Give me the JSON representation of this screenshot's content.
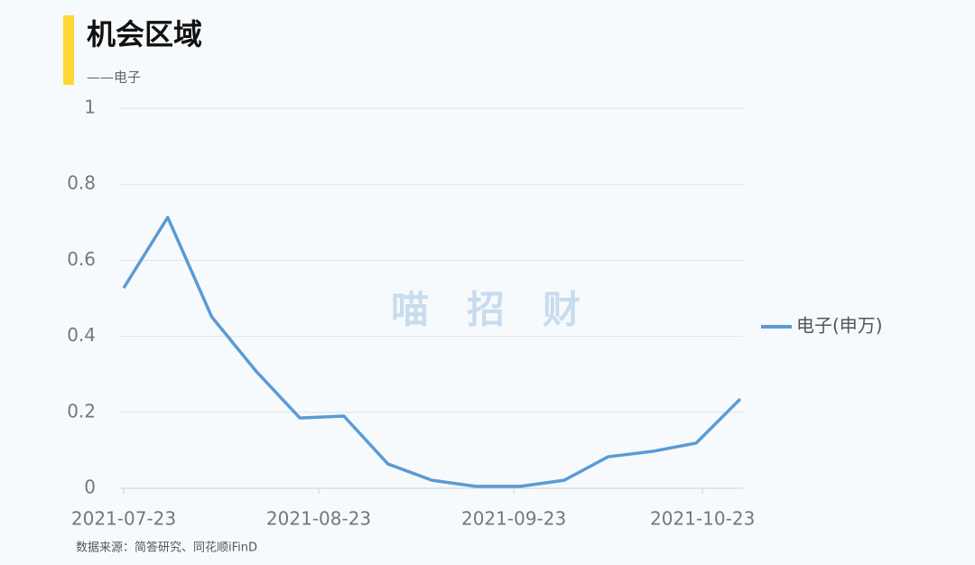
{
  "chart_data": {
    "type": "line",
    "title": "机会区域",
    "subtitle": "——电子",
    "source": "数据来源：简答研究、同花顺iFinD",
    "watermark": "喵　招　财",
    "x": [
      "2021-07-23",
      "2021-07-30",
      "2021-08-06",
      "2021-08-13",
      "2021-08-20",
      "2021-08-27",
      "2021-09-03",
      "2021-09-10",
      "2021-09-17",
      "2021-09-24",
      "2021-10-01",
      "2021-10-08",
      "2021-10-15",
      "2021-10-22",
      "2021-10-29"
    ],
    "series": [
      {
        "name": "电子(申万)",
        "color": "#5b9bd5",
        "values": [
          0.527,
          0.713,
          0.451,
          0.309,
          0.185,
          0.19,
          0.064,
          0.021,
          0.005,
          0.005,
          0.021,
          0.083,
          0.097,
          0.119,
          0.235
        ]
      }
    ],
    "xlim": [
      "2021-07-23",
      "2021-10-29"
    ],
    "xticks": [
      "2021-07-23",
      "2021-08-23",
      "2021-09-23",
      "2021-10-23"
    ],
    "ylim": [
      0,
      1
    ],
    "yticks": [
      0,
      0.2,
      0.4,
      0.6,
      0.8,
      1
    ],
    "grid": true,
    "legend": "right"
  }
}
